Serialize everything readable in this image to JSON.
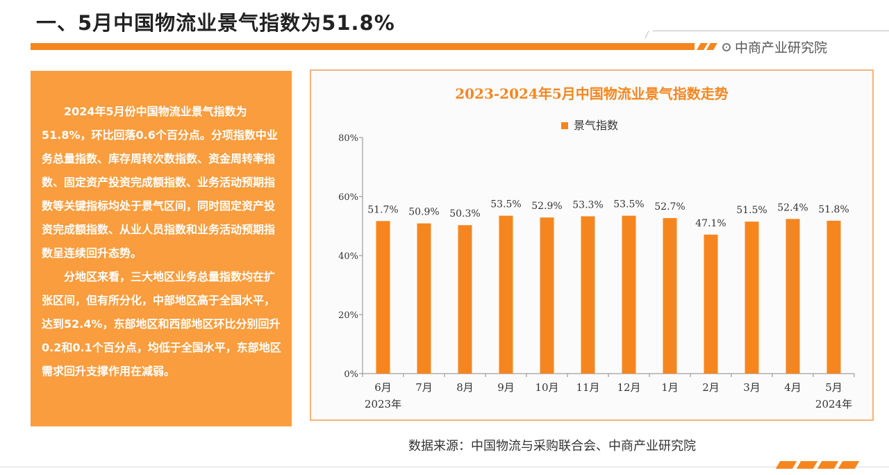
{
  "header": {
    "title": "一、5月中国物流业景气指数为51.8%",
    "brand": "中商产业研究院"
  },
  "text_panel": {
    "paragraph1": "2024年5月份中国物流业景气指数为51.8%，环比回落0.6个百分点。分项指数中业务总量指数、库存周转次数指数、资金周转率指数、固定资产投资完成额指数、业务活动预期指数等关键指标均处于景气区间，同时固定资产投资完成额指数、从业人员指数和业务活动预期指数呈连续回升态势。",
    "paragraph2": "分地区来看，三大地区业务总量指数均在扩张区间，但有所分化，中部地区高于全国水平，达到52.4%，东部地区和西部地区环比分别回升0.2和0.1个百分点，均低于全国水平，东部地区需求回升支撑作用在减弱。"
  },
  "chart_data": {
    "type": "bar",
    "title": "2023-2024年5月中国物流业景气指数走势",
    "categories": [
      "6月",
      "7月",
      "8月",
      "9月",
      "10月",
      "11月",
      "12月",
      "1月",
      "2月",
      "3月",
      "4月",
      "5月"
    ],
    "year_labels": [
      {
        "index": 0,
        "text": "2023年"
      },
      {
        "index": 11,
        "text": "2024年"
      }
    ],
    "series": [
      {
        "name": "景气指数",
        "values": [
          51.7,
          50.9,
          50.3,
          53.5,
          52.9,
          53.3,
          53.5,
          52.7,
          47.1,
          51.5,
          52.4,
          51.8
        ]
      }
    ],
    "data_labels": [
      "51.7%",
      "50.9%",
      "50.3%",
      "53.5%",
      "52.9%",
      "53.3%",
      "53.5%",
      "52.7%",
      "47.1%",
      "51.5%",
      "52.4%",
      "51.8%"
    ],
    "y_ticks": [
      "0%",
      "20%",
      "40%",
      "60%",
      "80%"
    ],
    "ylim": [
      0,
      80
    ],
    "legend_position": "top",
    "grid": false,
    "color": "#f5861f"
  },
  "footer": {
    "source": "数据来源：中国物流与采购联合会、中商产业研究院"
  }
}
